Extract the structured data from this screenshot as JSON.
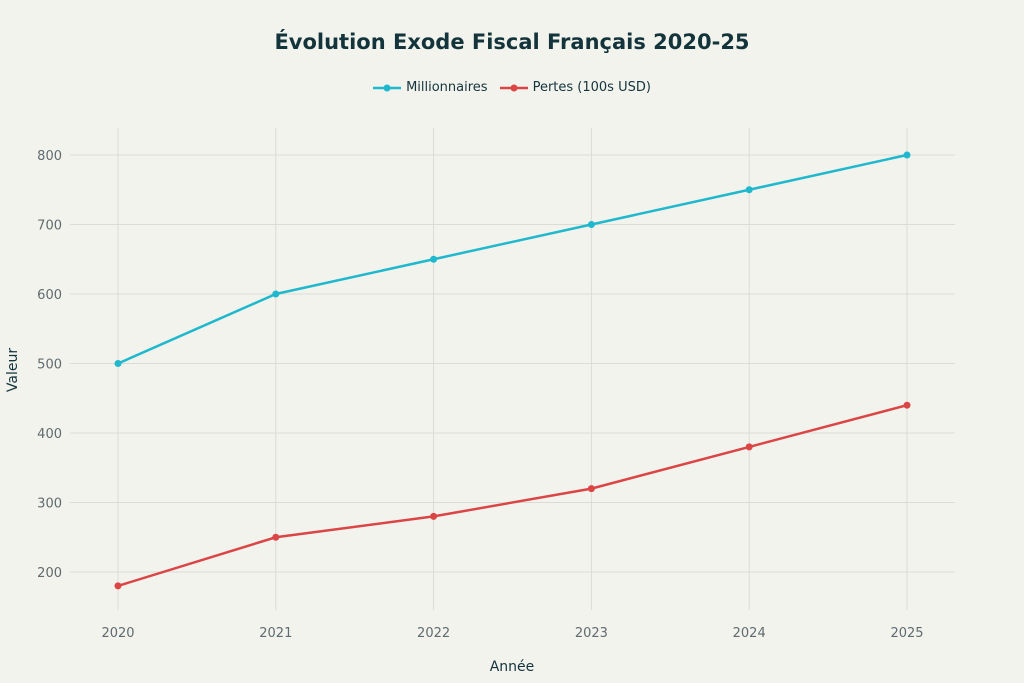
{
  "chart_data": {
    "type": "line",
    "title": "Évolution Exode Fiscal Français 2020-25",
    "xlabel": "Année",
    "ylabel": "Valeur",
    "x": [
      2020,
      2021,
      2022,
      2023,
      2024,
      2025
    ],
    "x_tick_labels": [
      "2020",
      "2021",
      "2022",
      "2023",
      "2024",
      "2025"
    ],
    "y_ticks": [
      200,
      300,
      400,
      500,
      600,
      700,
      800
    ],
    "ylim": [
      145,
      840
    ],
    "grid": true,
    "legend_position": "top-center",
    "series": [
      {
        "name": "Millionnaires",
        "color": "#1FB8CD",
        "values": [
          500,
          600,
          650,
          700,
          750,
          800
        ]
      },
      {
        "name": "Pertes (100s USD)",
        "color": "#DB4545",
        "values": [
          180,
          250,
          280,
          320,
          380,
          440
        ]
      }
    ]
  }
}
